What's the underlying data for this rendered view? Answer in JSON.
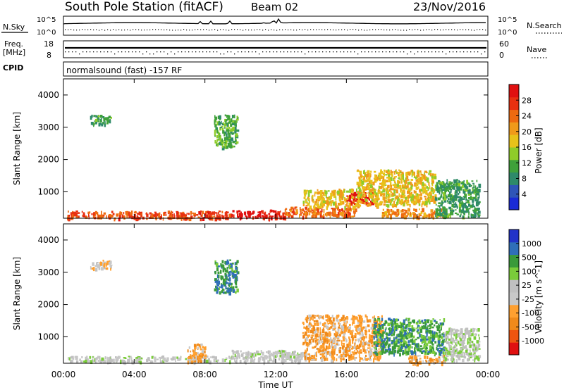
{
  "header": {
    "station": "South Pole Station (fitACF)",
    "beam": "Beam 02",
    "date": "23/Nov/2016"
  },
  "noise_panel": {
    "left_label": "N.Sky",
    "left_ticks": [
      "10^5",
      "10^0"
    ],
    "right_label": "N.Search",
    "right_ticks": [
      "10^5",
      "10^0"
    ]
  },
  "freq_panel": {
    "left_label_1": "Freq.",
    "left_label_2": "[MHz]",
    "left_ticks": [
      "18",
      "8"
    ],
    "right_label": "Nave",
    "right_ticks": [
      "60",
      "0"
    ]
  },
  "cpid_panel": {
    "label": "CPID",
    "program": "normalsound (fast) -157 RF"
  },
  "x_axis": {
    "label": "Time UT",
    "ticks": [
      "00:00",
      "04:00",
      "08:00",
      "12:00",
      "16:00",
      "20:00",
      "00:00"
    ]
  },
  "colors": {
    "power": [
      "#1a2bd6",
      "#2f55b8",
      "#2e8a6a",
      "#3fa13a",
      "#8fcc2a",
      "#e8c21a",
      "#f09a1a",
      "#ee6a10",
      "#e83010",
      "#e01010"
    ],
    "velocity": [
      "#e01010",
      "#ee5510",
      "#f08a1a",
      "#ffa030",
      "#c8c8c8",
      "#c0c0c0",
      "#7acc3a",
      "#3a9a3a",
      "#2f6fb8",
      "#2233c8"
    ]
  },
  "chart_data": [
    {
      "type": "heatmap",
      "panel": "power",
      "ylabel": "Slant Range [km]",
      "yticks": [
        "1000",
        "2000",
        "3000",
        "4000"
      ],
      "ylim": [
        180,
        4500
      ],
      "xlim": [
        0,
        24
      ],
      "colorbar": {
        "label": "Power [dB]",
        "ticks": [
          "4",
          "8",
          "12",
          "16",
          "20",
          "24",
          "28"
        ],
        "range": [
          0,
          32
        ]
      },
      "regions": [
        {
          "t0": 0.2,
          "t1": 9.5,
          "r0": 200,
          "r1": 420,
          "value": 26
        },
        {
          "t0": 9.5,
          "t1": 12.5,
          "r0": 200,
          "r1": 450,
          "value": 30
        },
        {
          "t0": 12.5,
          "t1": 16.5,
          "r0": 250,
          "r1": 550,
          "value": 24
        },
        {
          "t0": 13.5,
          "t1": 16.5,
          "r0": 550,
          "r1": 1100,
          "value": 18
        },
        {
          "t0": 16.0,
          "t1": 17.5,
          "r0": 650,
          "r1": 1000,
          "value": 30
        },
        {
          "t0": 16.5,
          "t1": 21.0,
          "r0": 600,
          "r1": 1700,
          "value": 18
        },
        {
          "t0": 18.0,
          "t1": 21.5,
          "r0": 250,
          "r1": 500,
          "value": 22
        },
        {
          "t0": 21.0,
          "t1": 23.5,
          "r0": 250,
          "r1": 1400,
          "value": 10
        },
        {
          "t0": 8.5,
          "t1": 9.8,
          "r0": 2400,
          "r1": 3400,
          "value": 12
        },
        {
          "t0": 1.5,
          "t1": 2.7,
          "r0": 3100,
          "r1": 3400,
          "value": 10
        }
      ]
    },
    {
      "type": "heatmap",
      "panel": "velocity",
      "ylabel": "Slant Range [km]",
      "yticks": [
        "1000",
        "2000",
        "3000",
        "4000"
      ],
      "ylim": [
        180,
        4500
      ],
      "xlim": [
        0,
        24
      ],
      "colorbar": {
        "label": "Velocity [m s^-1]",
        "ticks": [
          "-1000",
          "-500",
          "-100",
          "-25",
          "25",
          "100",
          "500",
          "1000"
        ],
        "range": [
          -1200,
          1200
        ]
      },
      "regions": [
        {
          "t0": 0.2,
          "t1": 9.5,
          "r0": 250,
          "r1": 420,
          "value": 80
        },
        {
          "t0": 9.5,
          "t1": 13.5,
          "r0": 250,
          "r1": 600,
          "value": 60
        },
        {
          "t0": 7.0,
          "t1": 8.0,
          "r0": 250,
          "r1": 800,
          "value": -400
        },
        {
          "t0": 13.5,
          "t1": 18.0,
          "r0": 300,
          "r1": 1700,
          "value": -400
        },
        {
          "t0": 17.5,
          "t1": 21.5,
          "r0": 500,
          "r1": 1600,
          "value": 600
        },
        {
          "t0": 19.5,
          "t1": 21.5,
          "r0": 200,
          "r1": 450,
          "value": -400
        },
        {
          "t0": 21.5,
          "t1": 23.5,
          "r0": 300,
          "r1": 1300,
          "value": 200
        },
        {
          "t0": 8.5,
          "t1": 9.8,
          "r0": 2400,
          "r1": 3400,
          "value": 700
        },
        {
          "t0": 1.5,
          "t1": 2.7,
          "r0": 3100,
          "r1": 3400,
          "value": -200
        }
      ]
    }
  ]
}
